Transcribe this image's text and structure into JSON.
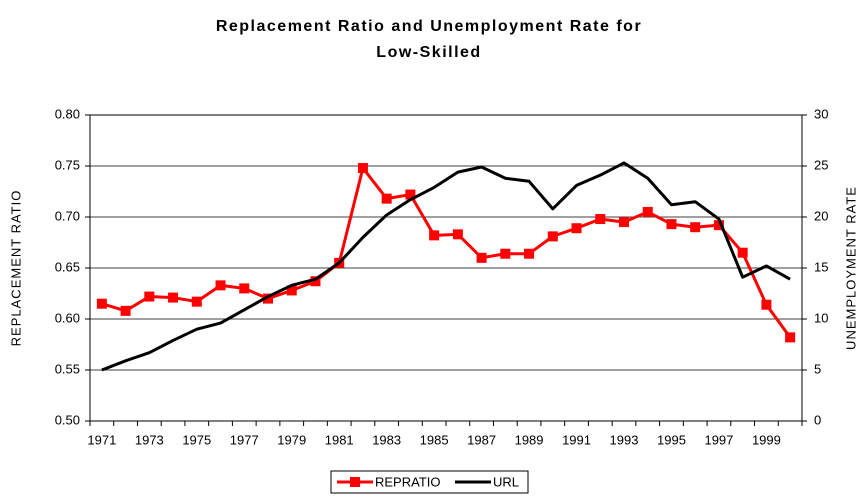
{
  "chart_data": {
    "type": "line",
    "title": "Replacement Ratio and Unemployment Rate for Low-Skilled",
    "y_label": "REPLACEMENT RATIO",
    "y2_label": "UNEMPLOYMENT RATE",
    "categories": [
      "1971",
      null,
      "1973",
      null,
      "1975",
      null,
      "1977",
      null,
      "1979",
      null,
      "1981",
      null,
      "1983",
      null,
      "1985",
      null,
      "1987",
      null,
      "1989",
      null,
      "1991",
      null,
      "1993",
      null,
      "1995",
      null,
      "1997",
      null,
      "1999",
      null
    ],
    "series": [
      {
        "name": "REPRATIO",
        "color": "#ff0000",
        "marker": "square",
        "values": [
          0.615,
          0.608,
          0.622,
          0.621,
          0.617,
          0.633,
          0.63,
          0.62,
          0.628,
          0.637,
          0.655,
          0.748,
          0.718,
          0.722,
          0.682,
          0.683,
          0.66,
          0.664,
          0.664,
          0.681,
          0.689,
          0.698,
          0.695,
          0.705,
          0.693,
          0.69,
          0.692,
          0.665,
          0.614,
          0.582
        ]
      },
      {
        "name": "URL",
        "color": "#000000",
        "axis": "y2",
        "values": [
          5.0,
          5.9,
          6.7,
          7.9,
          9.0,
          9.6,
          10.9,
          12.2,
          13.3,
          13.9,
          15.5,
          18.0,
          20.2,
          21.7,
          22.9,
          24.4,
          24.9,
          23.8,
          23.5,
          20.8,
          23.1,
          24.1,
          25.3,
          23.8,
          21.2,
          21.5,
          19.8,
          14.1,
          15.2,
          13.9
        ]
      }
    ],
    "ylim": [
      0.5,
      0.8
    ],
    "yticks": [
      {
        "value": 0.5,
        "label": "0.50"
      },
      0.55,
      {
        "value": 0.6,
        "label": "0.60"
      },
      0.65,
      {
        "value": 0.7,
        "label": "0.70"
      },
      0.75,
      {
        "value": 0.8,
        "label": "0.80"
      }
    ],
    "y2lim": [
      0,
      30
    ],
    "y2ticks": [
      0,
      5,
      10,
      15,
      20,
      25,
      30
    ],
    "grid": true,
    "legend": "bottom"
  }
}
